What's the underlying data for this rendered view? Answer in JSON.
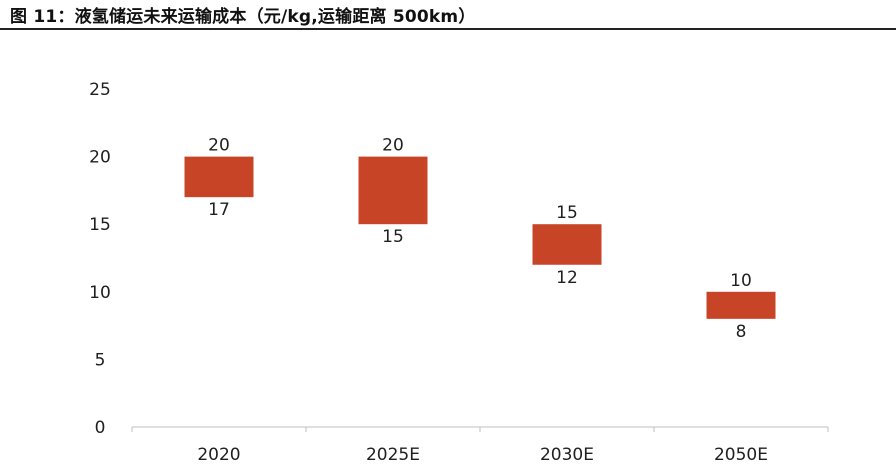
{
  "header": {
    "title": "图 11：液氢储运未来运输成本（元/kg,运输距离 500km）"
  },
  "colors": {
    "bar": "#c84426",
    "axis": "#bfbfbf",
    "text": "#1f1f1f"
  },
  "chart_data": {
    "type": "bar",
    "subtype": "floating-range",
    "title": "图 11：液氢储运未来运输成本（元/kg,运输距离 500km）",
    "categories": [
      "2020",
      "2025E",
      "2030E",
      "2050E"
    ],
    "series": [
      {
        "low": [
          17,
          15,
          12,
          8
        ],
        "high": [
          20,
          20,
          15,
          10
        ]
      }
    ],
    "ylim": [
      0,
      25
    ],
    "yticks": [
      0,
      5,
      10,
      15,
      20,
      25
    ],
    "grid": false,
    "legend": "none",
    "xlabel": "",
    "ylabel": ""
  }
}
